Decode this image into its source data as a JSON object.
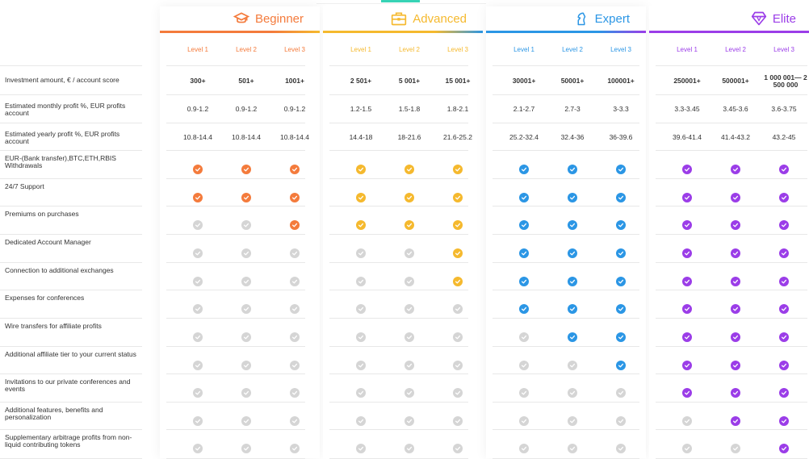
{
  "header_snippet": "",
  "tiers": [
    {
      "name": "Beginner",
      "icon": "graduation-cap-icon",
      "color": "#f47b3c",
      "levels": [
        "Level 1",
        "Level 2",
        "Level 3"
      ]
    },
    {
      "name": "Advanced",
      "icon": "briefcase-icon",
      "color": "#f5b92e",
      "levels": [
        "Level 1",
        "Level 2",
        "Level 3"
      ]
    },
    {
      "name": "Expert",
      "icon": "chess-knight-icon",
      "color": "#2b96e5",
      "levels": [
        "Level 1",
        "Level 2",
        "Level 3"
      ]
    },
    {
      "name": "Elite",
      "icon": "diamond-icon",
      "color": "#9b3de8",
      "levels": [
        "Level 1",
        "Level 2",
        "Level 3"
      ]
    }
  ],
  "rows": [
    {
      "label": "Investment amount, € / account score",
      "type": "text",
      "bold": true,
      "values": [
        "300+",
        "501+",
        "1001+",
        "2 501+",
        "5 001+",
        "15 001+",
        "30001+",
        "50001+",
        "100001+",
        "250001+",
        "500001+",
        "1 000 001— 2 500 000"
      ]
    },
    {
      "label": "Estimated monthly profit %, EUR profits account",
      "type": "text",
      "bold": false,
      "values": [
        "0.9-1.2",
        "0.9-1.2",
        "0.9-1.2",
        "1.2-1.5",
        "1.5-1.8",
        "1.8-2.1",
        "2.1-2.7",
        "2.7-3",
        "3-3.3",
        "3.3-3.45",
        "3.45-3.6",
        "3.6-3.75"
      ]
    },
    {
      "label": "Estimated yearly profit %, EUR profits account",
      "type": "text",
      "bold": false,
      "values": [
        "10.8-14.4",
        "10.8-14.4",
        "10.8-14.4",
        "14.4-18",
        "18-21.6",
        "21.6-25.2",
        "25.2-32.4",
        "32.4-36",
        "36-39.6",
        "39.6-41.4",
        "41.4-43.2",
        "43.2-45"
      ]
    },
    {
      "label": "EUR-(Bank transfer),BTC,ETH,RBIS Withdrawals",
      "type": "check",
      "values": [
        1,
        1,
        1,
        1,
        1,
        1,
        1,
        1,
        1,
        1,
        1,
        1
      ]
    },
    {
      "label": "24/7 Support",
      "type": "check",
      "values": [
        1,
        1,
        1,
        1,
        1,
        1,
        1,
        1,
        1,
        1,
        1,
        1
      ]
    },
    {
      "label": "Premiums on purchases",
      "type": "check",
      "values": [
        0,
        0,
        1,
        1,
        1,
        1,
        1,
        1,
        1,
        1,
        1,
        1
      ]
    },
    {
      "label": "Dedicated Account Manager",
      "type": "check",
      "values": [
        0,
        0,
        0,
        0,
        0,
        1,
        1,
        1,
        1,
        1,
        1,
        1
      ]
    },
    {
      "label": "Connection to additional exchanges",
      "type": "check",
      "values": [
        0,
        0,
        0,
        0,
        0,
        1,
        1,
        1,
        1,
        1,
        1,
        1
      ]
    },
    {
      "label": "Expenses for conferences",
      "type": "check",
      "values": [
        0,
        0,
        0,
        0,
        0,
        0,
        1,
        1,
        1,
        1,
        1,
        1
      ]
    },
    {
      "label": "Wire transfers for affiliate profits",
      "type": "check",
      "values": [
        0,
        0,
        0,
        0,
        0,
        0,
        0,
        1,
        1,
        1,
        1,
        1
      ]
    },
    {
      "label": "Additional affiliate tier to your current status",
      "type": "check",
      "values": [
        0,
        0,
        0,
        0,
        0,
        0,
        0,
        0,
        1,
        1,
        1,
        1
      ]
    },
    {
      "label": "Invitations to our private conferences and events",
      "type": "check",
      "values": [
        0,
        0,
        0,
        0,
        0,
        0,
        0,
        0,
        0,
        1,
        1,
        1
      ]
    },
    {
      "label": "Additional features, benefits and personalization",
      "type": "check",
      "values": [
        0,
        0,
        0,
        0,
        0,
        0,
        0,
        0,
        0,
        0,
        1,
        1
      ]
    },
    {
      "label": "Supplementary arbitrage profits from non-liquid contributing tokens",
      "type": "check",
      "values": [
        0,
        0,
        0,
        0,
        0,
        0,
        0,
        0,
        0,
        0,
        0,
        1
      ]
    }
  ],
  "colors": {
    "inactive_check": "#d5d5d5",
    "row_line": "#e8e8e8"
  }
}
